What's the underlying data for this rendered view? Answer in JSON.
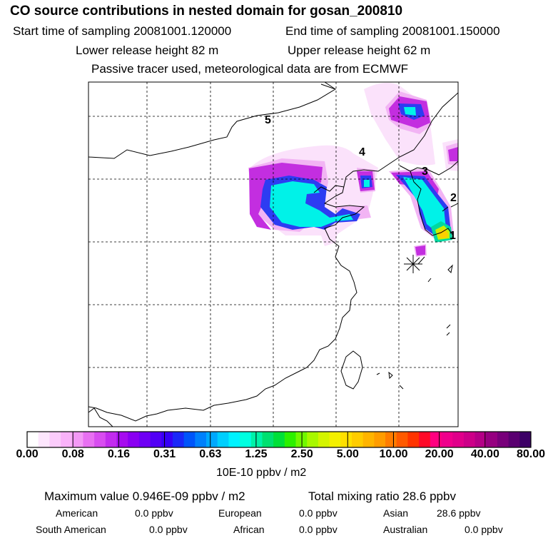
{
  "header": {
    "title": "CO  source contributions in nested domain for gosan_200810",
    "start_time": "Start time of sampling 20081001.120000",
    "end_time": "End time of sampling 20081001.150000",
    "lower_height": "Lower release height   82 m",
    "upper_height": "Upper release height   62 m",
    "note": "Passive tracer used, meteorological data are from ECMWF"
  },
  "map": {
    "markers": [
      "1",
      "2",
      "3",
      "4",
      "5"
    ],
    "receptor_symbol": "asterisk"
  },
  "colorbar": {
    "colors": [
      "#ffffff",
      "#fde6fd",
      "#fbccfb",
      "#f9b2f9",
      "#f399f6",
      "#e870f2",
      "#d84df0",
      "#c22cee",
      "#a60cef",
      "#8a00f2",
      "#6f00f4",
      "#5200f5",
      "#3600f6",
      "#1a28f8",
      "#0055fa",
      "#0080fc",
      "#00a8fd",
      "#00cffe",
      "#00f2ff",
      "#00ffe0",
      "#00f2a8",
      "#00e070",
      "#00e038",
      "#2cf000",
      "#70f800",
      "#a8f800",
      "#d4f400",
      "#f4f000",
      "#ffe000",
      "#ffcc00",
      "#ffb400",
      "#ff9c00",
      "#ff7c00",
      "#ff5a00",
      "#ff3400",
      "#ff0a28",
      "#ff0080",
      "#f0008c",
      "#e0008a",
      "#cc0088",
      "#b40086",
      "#960080",
      "#78007a",
      "#5a0070",
      "#3c0066"
    ],
    "ticks": [
      "0.00",
      "0.08",
      "0.16",
      "0.31",
      "0.63",
      "1.25",
      "2.50",
      "5.00",
      "10.00",
      "20.00",
      "40.00",
      "80.00"
    ],
    "unit_label": "10E-10 ppbv / m2"
  },
  "stats": {
    "max_value": "Maximum value  0.946E-09 ppbv / m2",
    "total_mixing": "Total mixing ratio       28.6 ppbv",
    "american": "American",
    "american_val": "0.0 ppbv",
    "european": "European",
    "european_val": "0.0 ppbv",
    "asian": "Asian",
    "asian_val": "28.6 ppbv",
    "south_american": "South American",
    "south_american_val": "0.0 ppbv",
    "african": "African",
    "african_val": "0.0 ppbv",
    "australian": "Australian",
    "australian_val": "0.0 ppbv"
  }
}
